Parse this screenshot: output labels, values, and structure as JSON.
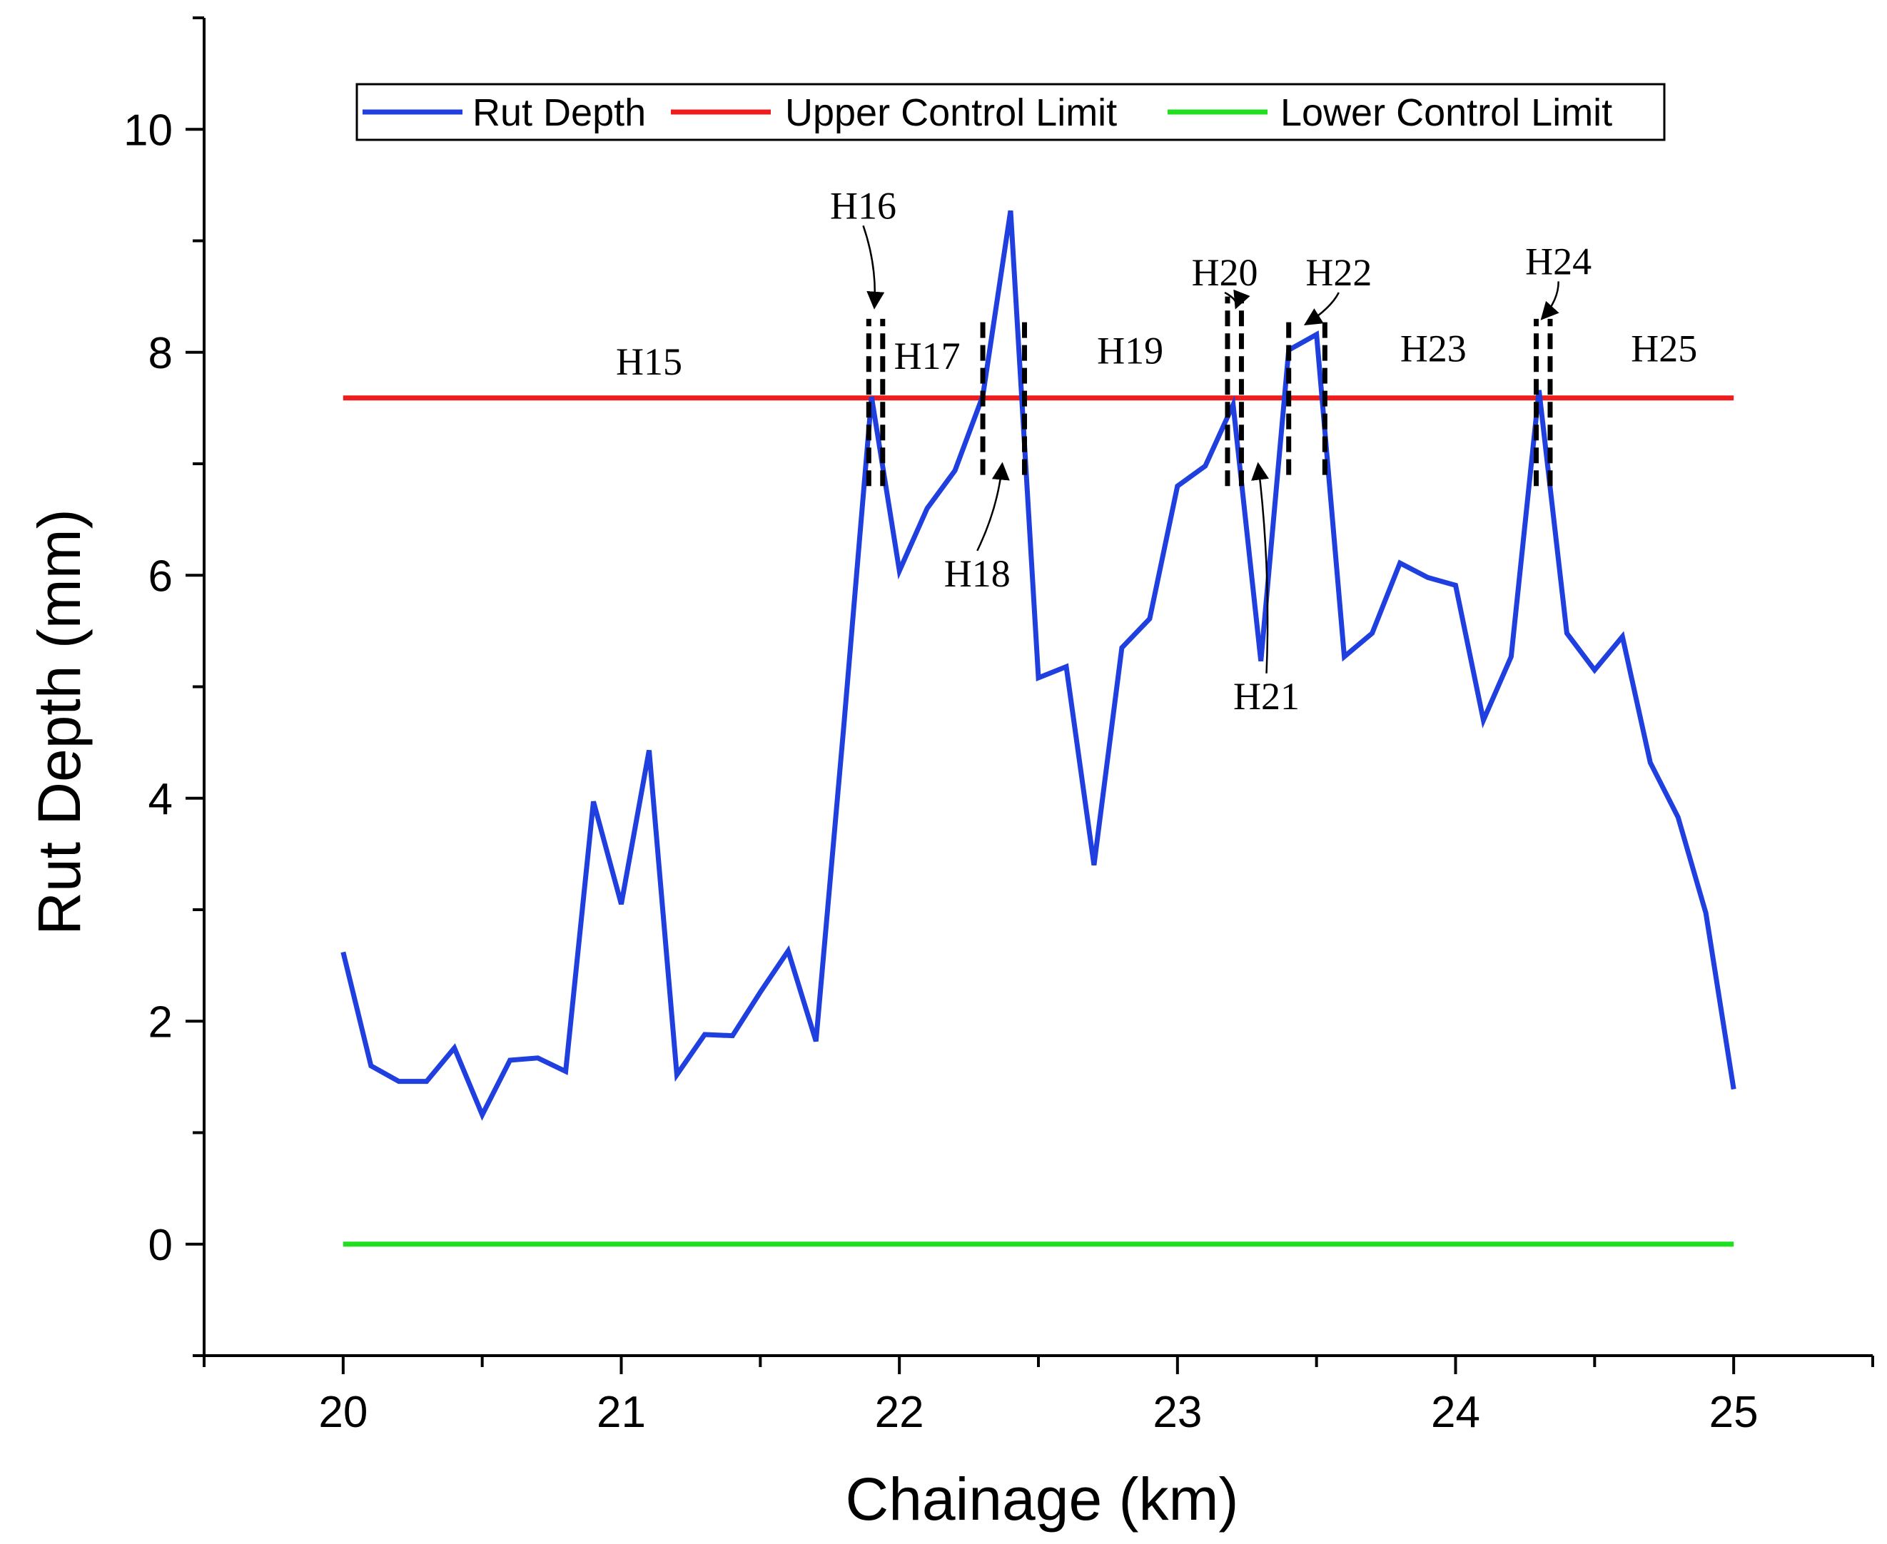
{
  "chart_data": {
    "type": "line",
    "xlabel": "Chainage (km)",
    "ylabel": "Rut Depth (mm)",
    "xlim": [
      19.5,
      25.5
    ],
    "ylim": [
      -1,
      11
    ],
    "xticks": [
      20,
      21,
      22,
      23,
      24,
      25
    ],
    "yticks": [
      0,
      2,
      4,
      6,
      8,
      10
    ],
    "grid": false,
    "legend_position": "top",
    "series": [
      {
        "name": "Rut Depth",
        "color": "#1f3fdf",
        "x": [
          20.0,
          20.1,
          20.2,
          20.3,
          20.4,
          20.5,
          20.6,
          20.7,
          20.8,
          20.9,
          21.0,
          21.1,
          21.2,
          21.3,
          21.4,
          21.5,
          21.6,
          21.7,
          21.8,
          21.9,
          22.0,
          22.1,
          22.2,
          22.3,
          22.4,
          22.5,
          22.6,
          22.7,
          22.8,
          22.9,
          23.0,
          23.1,
          23.2,
          23.3,
          23.4,
          23.5,
          23.6,
          23.7,
          23.8,
          23.9,
          24.0,
          24.1,
          24.2,
          24.3,
          24.4,
          24.5,
          24.6,
          24.7,
          24.8,
          24.9,
          25.0
        ],
        "values": [
          2.62,
          1.6,
          1.46,
          1.46,
          1.76,
          1.16,
          1.65,
          1.67,
          1.55,
          3.97,
          3.05,
          4.43,
          1.52,
          1.88,
          1.87,
          2.26,
          2.63,
          1.82,
          4.64,
          7.6,
          6.04,
          6.6,
          6.94,
          7.61,
          9.27,
          5.08,
          5.18,
          3.4,
          5.35,
          5.61,
          6.8,
          6.98,
          7.53,
          5.23,
          8.02,
          8.16,
          5.27,
          5.48,
          6.11,
          5.98,
          5.91,
          4.7,
          5.27,
          7.66,
          5.48,
          5.15,
          5.45,
          4.32,
          3.83,
          2.97,
          1.39
        ]
      },
      {
        "name": "Upper Control Limit",
        "color": "#ee1c1c",
        "x": [
          20,
          25
        ],
        "values": [
          7.59,
          7.59
        ]
      },
      {
        "name": "Lower Control Limit",
        "color": "#1fdf1f",
        "x": [
          20,
          25
        ],
        "values": [
          0,
          0
        ]
      }
    ],
    "annotations": [
      {
        "text": "H15",
        "x": 21.1,
        "y": 7.8
      },
      {
        "text": "H16",
        "x": 21.87,
        "y": 9.2,
        "arrow_to": [
          21.91,
          8.4
        ]
      },
      {
        "text": "H17",
        "x": 22.1,
        "y": 7.85
      },
      {
        "text": "H18",
        "x": 22.28,
        "y": 5.9,
        "arrow_to": [
          22.37,
          7.0
        ]
      },
      {
        "text": "H19",
        "x": 22.83,
        "y": 7.9
      },
      {
        "text": "H20",
        "x": 23.17,
        "y": 8.6,
        "arrow_to": [
          23.21,
          8.4
        ]
      },
      {
        "text": "H21",
        "x": 23.32,
        "y": 4.8,
        "arrow_to": [
          23.29,
          7.0
        ]
      },
      {
        "text": "H22",
        "x": 23.58,
        "y": 8.6,
        "arrow_to": [
          23.46,
          8.25
        ]
      },
      {
        "text": "H23",
        "x": 23.92,
        "y": 7.92
      },
      {
        "text": "H24",
        "x": 24.37,
        "y": 8.7,
        "arrow_to": [
          24.31,
          8.3
        ]
      },
      {
        "text": "H25",
        "x": 24.75,
        "y": 7.92
      }
    ],
    "boundaries": [
      {
        "x": 21.89,
        "y": [
          6.8,
          8.3
        ]
      },
      {
        "x": 21.94,
        "y": [
          6.8,
          8.3
        ]
      },
      {
        "x": 22.3,
        "y": [
          6.9,
          8.3
        ]
      },
      {
        "x": 22.45,
        "y": [
          6.9,
          8.3
        ]
      },
      {
        "x": 23.18,
        "y": [
          6.8,
          8.5
        ]
      },
      {
        "x": 23.23,
        "y": [
          6.8,
          8.5
        ]
      },
      {
        "x": 23.4,
        "y": [
          6.9,
          8.3
        ]
      },
      {
        "x": 23.53,
        "y": [
          6.9,
          8.3
        ]
      },
      {
        "x": 24.29,
        "y": [
          6.8,
          8.3
        ]
      },
      {
        "x": 24.34,
        "y": [
          6.8,
          8.3
        ]
      }
    ]
  }
}
